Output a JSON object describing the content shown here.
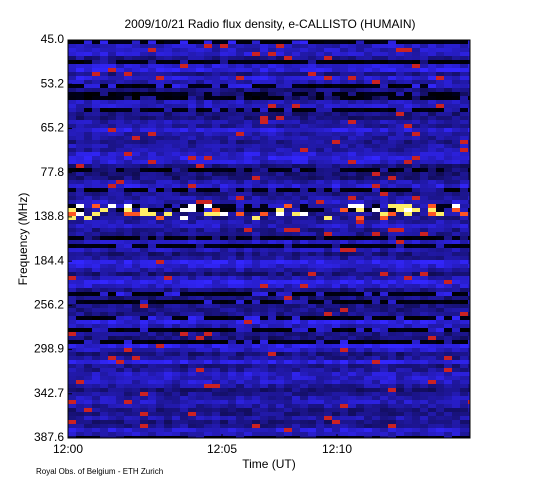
{
  "chart_data": {
    "type": "heatmap",
    "title": "2009/10/21  Radio flux density, e-CALLISTO (HUMAIN)",
    "y_label": "Frequency (MHz)",
    "x_label": "Time (UT)",
    "y_categories": [
      "45.0",
      "53.2",
      "65.2",
      "77.8",
      "138.8",
      "184.4",
      "256.2",
      "298.9",
      "342.7",
      "387.6"
    ],
    "x_categories": [
      "12:00",
      "12:05",
      "12:10"
    ],
    "credit": "Royal Obs. of Belgium - ETH Zurich"
  }
}
